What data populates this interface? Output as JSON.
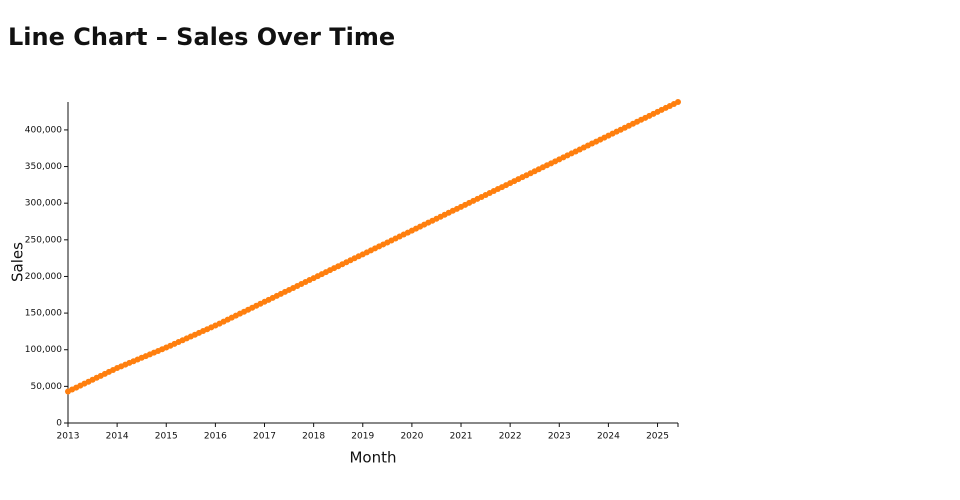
{
  "chart_data": {
    "type": "line",
    "title": "Line Chart – Sales Over Time",
    "x_label": "Month",
    "y_label": "Sales",
    "color": "#ff7f0e",
    "x": [
      "2013-01",
      "2013-02",
      "2013-03",
      "2013-04",
      "2013-05",
      "2013-06",
      "2013-07",
      "2013-08",
      "2013-09",
      "2013-10",
      "2013-11",
      "2013-12",
      "2014-01",
      "2014-02",
      "2014-03",
      "2014-04",
      "2014-05",
      "2014-06",
      "2014-07",
      "2014-08",
      "2014-09",
      "2014-10",
      "2014-11",
      "2014-12",
      "2015-01",
      "2015-02",
      "2015-03",
      "2015-04",
      "2015-05",
      "2015-06",
      "2015-07",
      "2015-08",
      "2015-09",
      "2015-10",
      "2015-11",
      "2015-12",
      "2016-01",
      "2016-02",
      "2016-03",
      "2016-04",
      "2016-05",
      "2016-06",
      "2016-07",
      "2016-08",
      "2016-09",
      "2016-10",
      "2016-11",
      "2016-12",
      "2017-01",
      "2017-02",
      "2017-03",
      "2017-04",
      "2017-05",
      "2017-06",
      "2017-07",
      "2017-08",
      "2017-09",
      "2017-10",
      "2017-11",
      "2017-12",
      "2018-01",
      "2018-02",
      "2018-03",
      "2018-04",
      "2018-05",
      "2018-06",
      "2018-07",
      "2018-08",
      "2018-09",
      "2018-10",
      "2018-11",
      "2018-12",
      "2019-01",
      "2019-02",
      "2019-03",
      "2019-04",
      "2019-05",
      "2019-06",
      "2019-07",
      "2019-08",
      "2019-09",
      "2019-10",
      "2019-11",
      "2019-12",
      "2020-01",
      "2020-02",
      "2020-03",
      "2020-04",
      "2020-05",
      "2020-06",
      "2020-07",
      "2020-08",
      "2020-09",
      "2020-10",
      "2020-11",
      "2020-12",
      "2021-01",
      "2021-02",
      "2021-03",
      "2021-04",
      "2021-05",
      "2021-06",
      "2021-07",
      "2021-08",
      "2021-09",
      "2021-10",
      "2021-11",
      "2021-12",
      "2022-01",
      "2022-02",
      "2022-03",
      "2022-04",
      "2022-05",
      "2022-06",
      "2022-07",
      "2022-08",
      "2022-09",
      "2022-10",
      "2022-11",
      "2022-12",
      "2023-01",
      "2023-02",
      "2023-03",
      "2023-04",
      "2023-05",
      "2023-06",
      "2023-07",
      "2023-08",
      "2023-09",
      "2023-10",
      "2023-11",
      "2023-12",
      "2024-01",
      "2024-02",
      "2024-03",
      "2024-04",
      "2024-05",
      "2024-06",
      "2024-07",
      "2024-08",
      "2024-09",
      "2024-10",
      "2024-11",
      "2024-12",
      "2025-01",
      "2025-02",
      "2025-03",
      "2025-04",
      "2025-05",
      "2025-06"
    ],
    "values": [
      43000,
      45700,
      48300,
      51000,
      53700,
      56300,
      59000,
      61700,
      64300,
      67000,
      69700,
      72300,
      75000,
      77300,
      79700,
      82000,
      84300,
      86700,
      89000,
      91300,
      93700,
      96000,
      98300,
      100700,
      103000,
      105500,
      108000,
      110500,
      113000,
      115500,
      118000,
      120500,
      123000,
      125500,
      128000,
      130500,
      133000,
      135700,
      138400,
      141100,
      143800,
      146500,
      149200,
      151900,
      154600,
      157300,
      160000,
      162700,
      165400,
      168100,
      170800,
      173500,
      176200,
      178900,
      181600,
      184300,
      187000,
      189700,
      192400,
      195100,
      197800,
      200500,
      203200,
      205900,
      208600,
      211300,
      214000,
      216700,
      219400,
      222100,
      224800,
      227500,
      230200,
      232900,
      235600,
      238300,
      241000,
      243700,
      246400,
      249100,
      251800,
      254500,
      257200,
      259900,
      262600,
      265300,
      268000,
      270700,
      273400,
      276100,
      278800,
      281500,
      284200,
      286900,
      289600,
      292300,
      295000,
      297700,
      300400,
      303100,
      305800,
      308500,
      311200,
      313900,
      316600,
      319300,
      322000,
      324700,
      327400,
      330100,
      332800,
      335500,
      338200,
      340900,
      343600,
      346300,
      349000,
      351700,
      354400,
      357100,
      359800,
      362500,
      365200,
      367900,
      370600,
      373300,
      376000,
      378700,
      381400,
      384100,
      386800,
      389500,
      392200,
      394900,
      397600,
      400300,
      403000,
      405700,
      408400,
      411100,
      413800,
      416500,
      419200,
      421900,
      424600,
      427300,
      430000,
      432700,
      435400,
      438100
    ],
    "xlim": [
      "2013-01",
      "2025-06"
    ],
    "xticks": [
      {
        "value": "2013-01",
        "label": "2013"
      },
      {
        "value": "2014-01",
        "label": "2014"
      },
      {
        "value": "2015-01",
        "label": "2015"
      },
      {
        "value": "2016-01",
        "label": "2016"
      },
      {
        "value": "2017-01",
        "label": "2017"
      },
      {
        "value": "2018-01",
        "label": "2018"
      },
      {
        "value": "2019-01",
        "label": "2019"
      },
      {
        "value": "2020-01",
        "label": "2020"
      },
      {
        "value": "2021-01",
        "label": "2021"
      },
      {
        "value": "2022-01",
        "label": "2022"
      },
      {
        "value": "2023-01",
        "label": "2023"
      },
      {
        "value": "2024-01",
        "label": "2024"
      },
      {
        "value": "2025-01",
        "label": "2025"
      }
    ],
    "ylim": [
      0,
      438100
    ],
    "yticks": [
      0,
      {
        "value": 50000,
        "label": "50,000"
      },
      {
        "value": 100000,
        "label": "100,000"
      },
      {
        "value": 150000,
        "label": "150,000"
      },
      {
        "value": 200000,
        "label": "200,000"
      },
      {
        "value": 250000,
        "label": "250,000"
      },
      {
        "value": 300000,
        "label": "300,000"
      },
      {
        "value": 350000,
        "label": "350,000"
      },
      {
        "value": 400000,
        "label": "400,000"
      }
    ]
  }
}
